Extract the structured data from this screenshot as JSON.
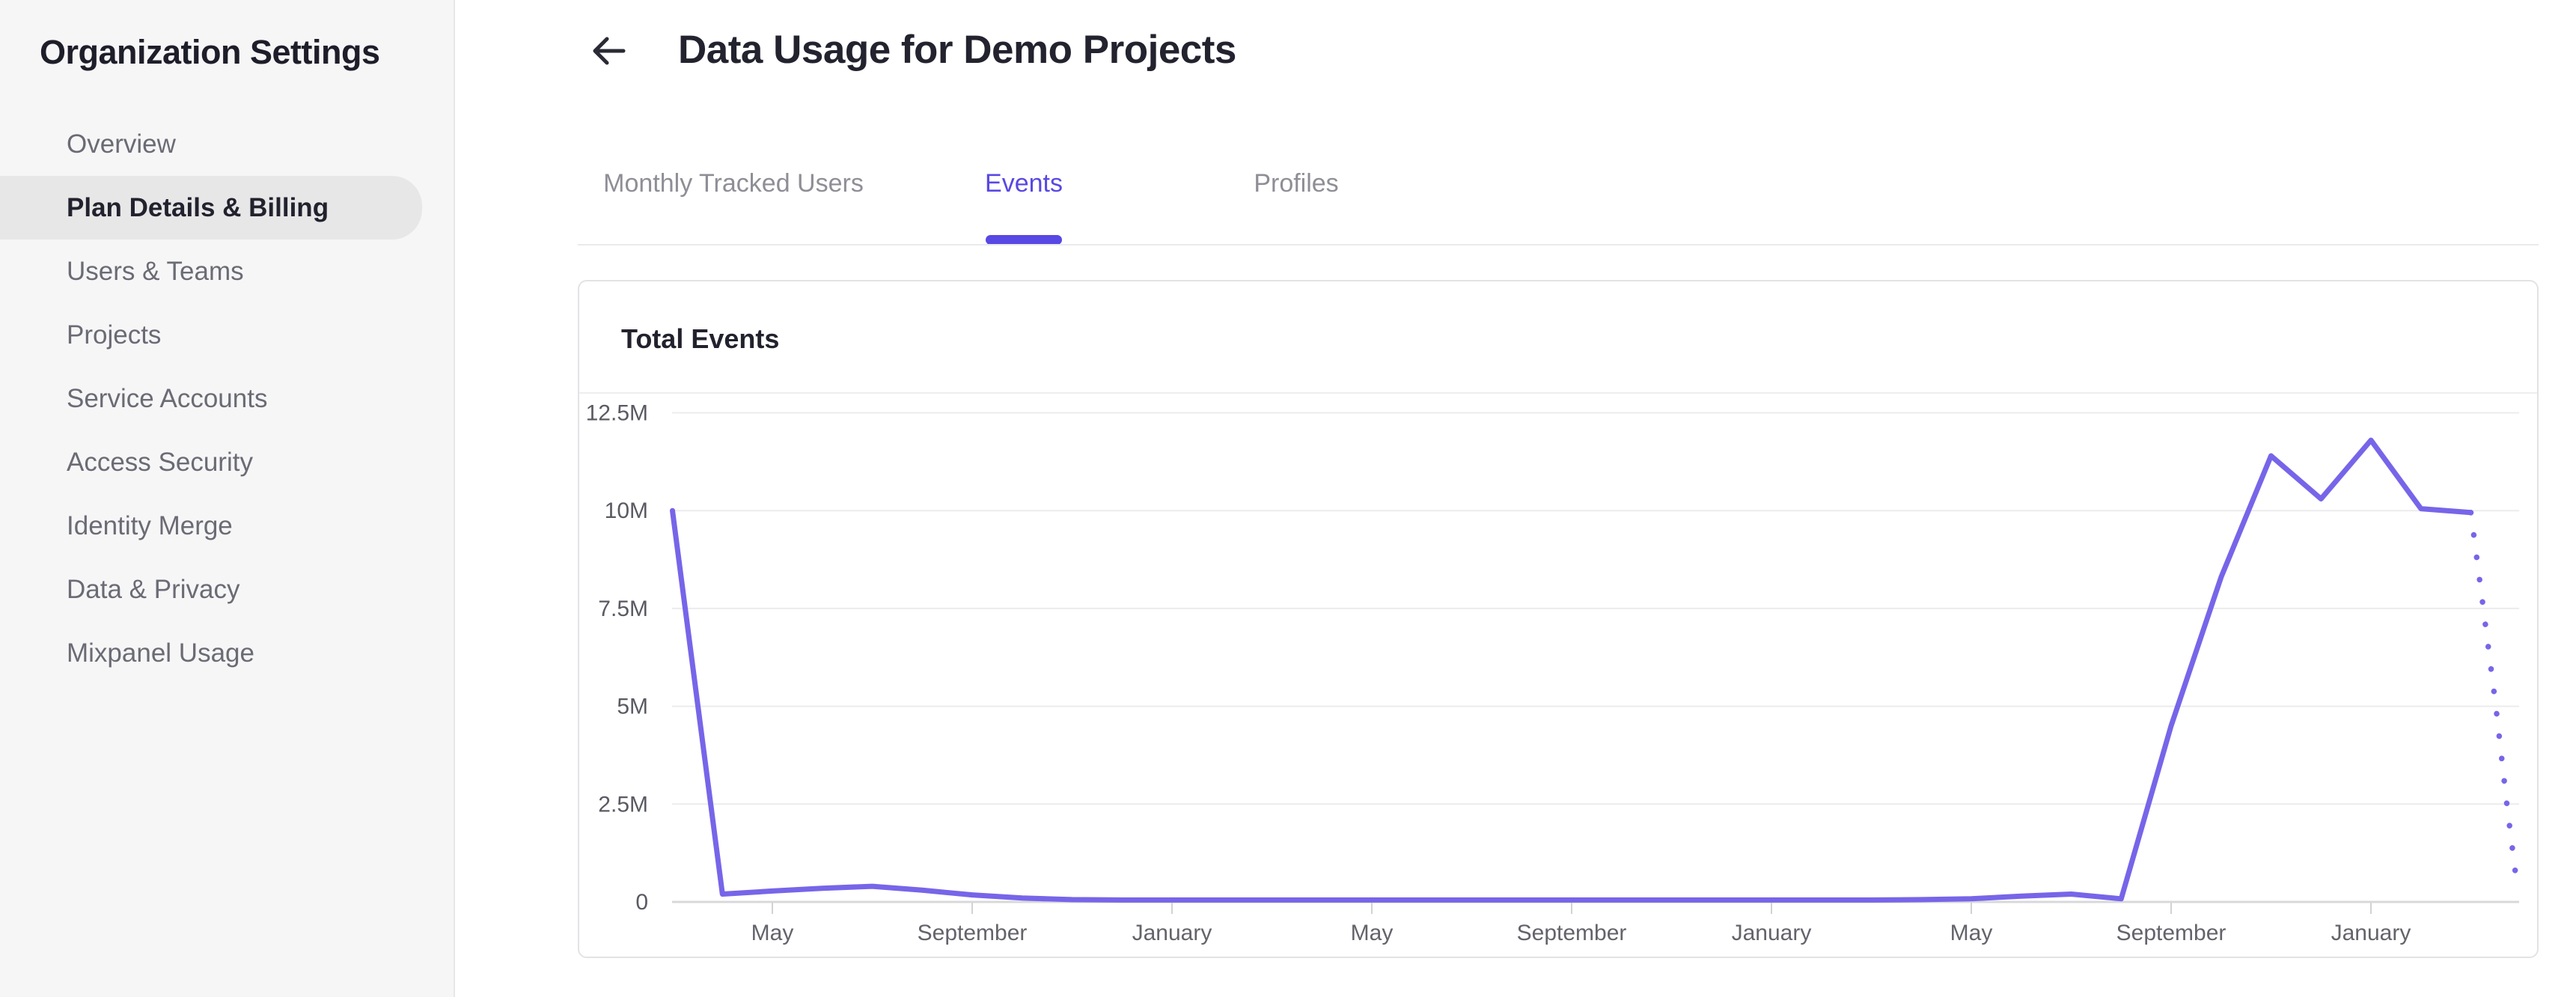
{
  "sidebar": {
    "title": "Organization Settings",
    "items": [
      {
        "label": "Overview",
        "active": false
      },
      {
        "label": "Plan Details & Billing",
        "active": true
      },
      {
        "label": "Users & Teams",
        "active": false
      },
      {
        "label": "Projects",
        "active": false
      },
      {
        "label": "Service Accounts",
        "active": false
      },
      {
        "label": "Access Security",
        "active": false
      },
      {
        "label": "Identity Merge",
        "active": false
      },
      {
        "label": "Data & Privacy",
        "active": false
      },
      {
        "label": "Mixpanel Usage",
        "active": false
      }
    ]
  },
  "header": {
    "title": "Data Usage for Demo Projects",
    "back_icon": "arrow-left"
  },
  "tabs": {
    "items": [
      {
        "label": "Monthly Tracked Users",
        "active": false
      },
      {
        "label": "Events",
        "active": true
      },
      {
        "label": "Profiles",
        "active": false
      }
    ]
  },
  "card": {
    "title": "Total Events"
  },
  "colors": {
    "accent": "#5848e4",
    "chart_line": "#7765e9",
    "sidebar_bg": "#f6f6f7",
    "active_item_bg": "#e7e7e8",
    "gridline": "#ececee",
    "axis_line": "#d8d8da",
    "tick_mark": "#d2d2d4"
  },
  "chart_data": {
    "type": "line",
    "title": "Total Events",
    "series": [
      {
        "name": "Total Events",
        "unit": "millions of events",
        "cadence": "monthly",
        "values": [
          10,
          0.2,
          0.28,
          0.35,
          0.4,
          0.3,
          0.18,
          0.1,
          0.06,
          0.05,
          0.05,
          0.05,
          0.05,
          0.05,
          0.05,
          0.05,
          0.05,
          0.05,
          0.05,
          0.05,
          0.05,
          0.05,
          0.05,
          0.05,
          0.05,
          0.06,
          0.08,
          0.15,
          0.2,
          0.08,
          4.5,
          8.3,
          11.4,
          10.3,
          11.8,
          10.05,
          9.95
        ]
      }
    ],
    "projection_dotted_points": [
      [
        36,
        9.95
      ],
      [
        36.25,
        7.5
      ],
      [
        36.5,
        5.0
      ],
      [
        36.72,
        2.5
      ],
      [
        36.93,
        0.35
      ]
    ],
    "x_tick_labels": [
      "May",
      "September",
      "January",
      "May",
      "September",
      "January",
      "May",
      "September",
      "January"
    ],
    "x_first_tick_point_index": 2,
    "x_tick_every_n_points": 4,
    "y_tick_labels": [
      "0",
      "2.5M",
      "5M",
      "7.5M",
      "10M",
      "12.5M"
    ],
    "y_tick_values": [
      0,
      2.5,
      5,
      7.5,
      10,
      12.5
    ],
    "ylim": [
      0,
      12.5
    ],
    "grid": "horizontal",
    "legend": "none"
  }
}
